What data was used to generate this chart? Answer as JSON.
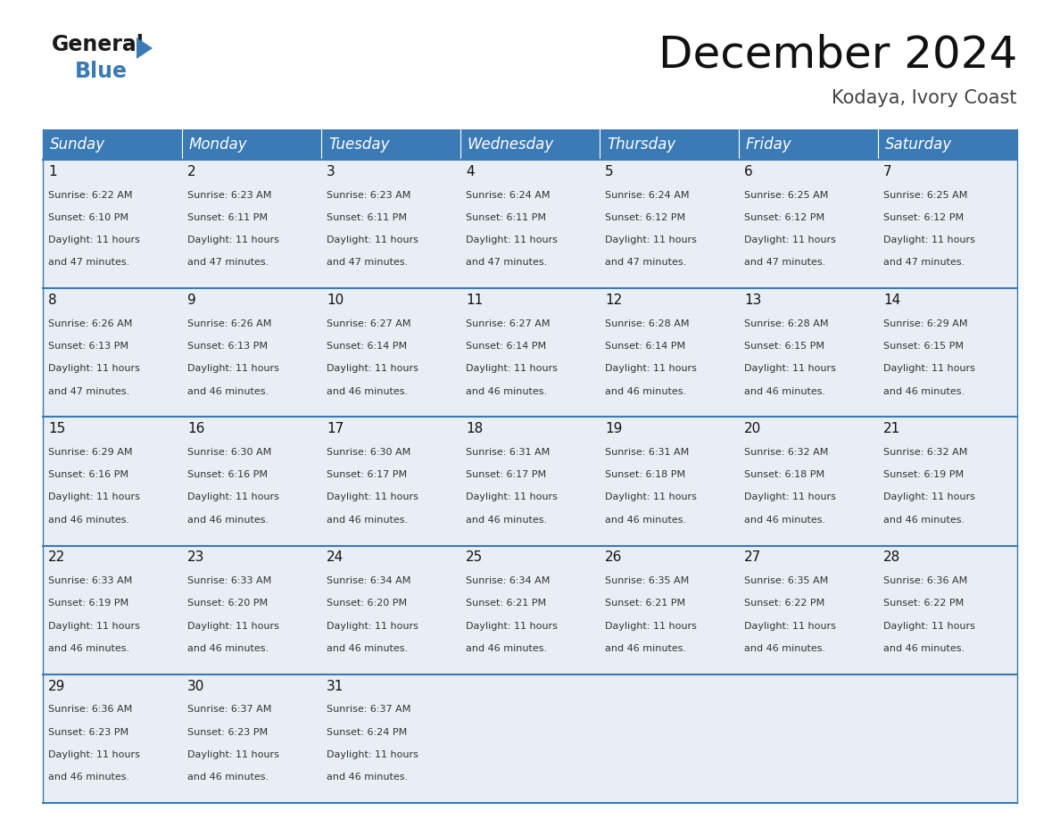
{
  "title": "December 2024",
  "subtitle": "Kodaya, Ivory Coast",
  "header_color": "#3a7ab5",
  "header_text_color": "#ffffff",
  "cell_bg_color": "#e8eef4",
  "border_color": "#3a7ab5",
  "days_of_week": [
    "Sunday",
    "Monday",
    "Tuesday",
    "Wednesday",
    "Thursday",
    "Friday",
    "Saturday"
  ],
  "weeks": [
    [
      {
        "day": 1,
        "sunrise": "6:22 AM",
        "sunset": "6:10 PM",
        "daylight_hours": 11,
        "daylight_min": 47
      },
      {
        "day": 2,
        "sunrise": "6:23 AM",
        "sunset": "6:11 PM",
        "daylight_hours": 11,
        "daylight_min": 47
      },
      {
        "day": 3,
        "sunrise": "6:23 AM",
        "sunset": "6:11 PM",
        "daylight_hours": 11,
        "daylight_min": 47
      },
      {
        "day": 4,
        "sunrise": "6:24 AM",
        "sunset": "6:11 PM",
        "daylight_hours": 11,
        "daylight_min": 47
      },
      {
        "day": 5,
        "sunrise": "6:24 AM",
        "sunset": "6:12 PM",
        "daylight_hours": 11,
        "daylight_min": 47
      },
      {
        "day": 6,
        "sunrise": "6:25 AM",
        "sunset": "6:12 PM",
        "daylight_hours": 11,
        "daylight_min": 47
      },
      {
        "day": 7,
        "sunrise": "6:25 AM",
        "sunset": "6:12 PM",
        "daylight_hours": 11,
        "daylight_min": 47
      }
    ],
    [
      {
        "day": 8,
        "sunrise": "6:26 AM",
        "sunset": "6:13 PM",
        "daylight_hours": 11,
        "daylight_min": 47
      },
      {
        "day": 9,
        "sunrise": "6:26 AM",
        "sunset": "6:13 PM",
        "daylight_hours": 11,
        "daylight_min": 46
      },
      {
        "day": 10,
        "sunrise": "6:27 AM",
        "sunset": "6:14 PM",
        "daylight_hours": 11,
        "daylight_min": 46
      },
      {
        "day": 11,
        "sunrise": "6:27 AM",
        "sunset": "6:14 PM",
        "daylight_hours": 11,
        "daylight_min": 46
      },
      {
        "day": 12,
        "sunrise": "6:28 AM",
        "sunset": "6:14 PM",
        "daylight_hours": 11,
        "daylight_min": 46
      },
      {
        "day": 13,
        "sunrise": "6:28 AM",
        "sunset": "6:15 PM",
        "daylight_hours": 11,
        "daylight_min": 46
      },
      {
        "day": 14,
        "sunrise": "6:29 AM",
        "sunset": "6:15 PM",
        "daylight_hours": 11,
        "daylight_min": 46
      }
    ],
    [
      {
        "day": 15,
        "sunrise": "6:29 AM",
        "sunset": "6:16 PM",
        "daylight_hours": 11,
        "daylight_min": 46
      },
      {
        "day": 16,
        "sunrise": "6:30 AM",
        "sunset": "6:16 PM",
        "daylight_hours": 11,
        "daylight_min": 46
      },
      {
        "day": 17,
        "sunrise": "6:30 AM",
        "sunset": "6:17 PM",
        "daylight_hours": 11,
        "daylight_min": 46
      },
      {
        "day": 18,
        "sunrise": "6:31 AM",
        "sunset": "6:17 PM",
        "daylight_hours": 11,
        "daylight_min": 46
      },
      {
        "day": 19,
        "sunrise": "6:31 AM",
        "sunset": "6:18 PM",
        "daylight_hours": 11,
        "daylight_min": 46
      },
      {
        "day": 20,
        "sunrise": "6:32 AM",
        "sunset": "6:18 PM",
        "daylight_hours": 11,
        "daylight_min": 46
      },
      {
        "day": 21,
        "sunrise": "6:32 AM",
        "sunset": "6:19 PM",
        "daylight_hours": 11,
        "daylight_min": 46
      }
    ],
    [
      {
        "day": 22,
        "sunrise": "6:33 AM",
        "sunset": "6:19 PM",
        "daylight_hours": 11,
        "daylight_min": 46
      },
      {
        "day": 23,
        "sunrise": "6:33 AM",
        "sunset": "6:20 PM",
        "daylight_hours": 11,
        "daylight_min": 46
      },
      {
        "day": 24,
        "sunrise": "6:34 AM",
        "sunset": "6:20 PM",
        "daylight_hours": 11,
        "daylight_min": 46
      },
      {
        "day": 25,
        "sunrise": "6:34 AM",
        "sunset": "6:21 PM",
        "daylight_hours": 11,
        "daylight_min": 46
      },
      {
        "day": 26,
        "sunrise": "6:35 AM",
        "sunset": "6:21 PM",
        "daylight_hours": 11,
        "daylight_min": 46
      },
      {
        "day": 27,
        "sunrise": "6:35 AM",
        "sunset": "6:22 PM",
        "daylight_hours": 11,
        "daylight_min": 46
      },
      {
        "day": 28,
        "sunrise": "6:36 AM",
        "sunset": "6:22 PM",
        "daylight_hours": 11,
        "daylight_min": 46
      }
    ],
    [
      {
        "day": 29,
        "sunrise": "6:36 AM",
        "sunset": "6:23 PM",
        "daylight_hours": 11,
        "daylight_min": 46
      },
      {
        "day": 30,
        "sunrise": "6:37 AM",
        "sunset": "6:23 PM",
        "daylight_hours": 11,
        "daylight_min": 46
      },
      {
        "day": 31,
        "sunrise": "6:37 AM",
        "sunset": "6:24 PM",
        "daylight_hours": 11,
        "daylight_min": 46
      },
      null,
      null,
      null,
      null
    ]
  ],
  "logo_general_color": "#1a1a1a",
  "logo_blue_color": "#3a7ab5",
  "logo_triangle_color": "#3a7ab5",
  "title_fontsize": 36,
  "subtitle_fontsize": 15,
  "header_fontsize": 12,
  "day_num_fontsize": 11,
  "cell_text_fontsize": 8
}
